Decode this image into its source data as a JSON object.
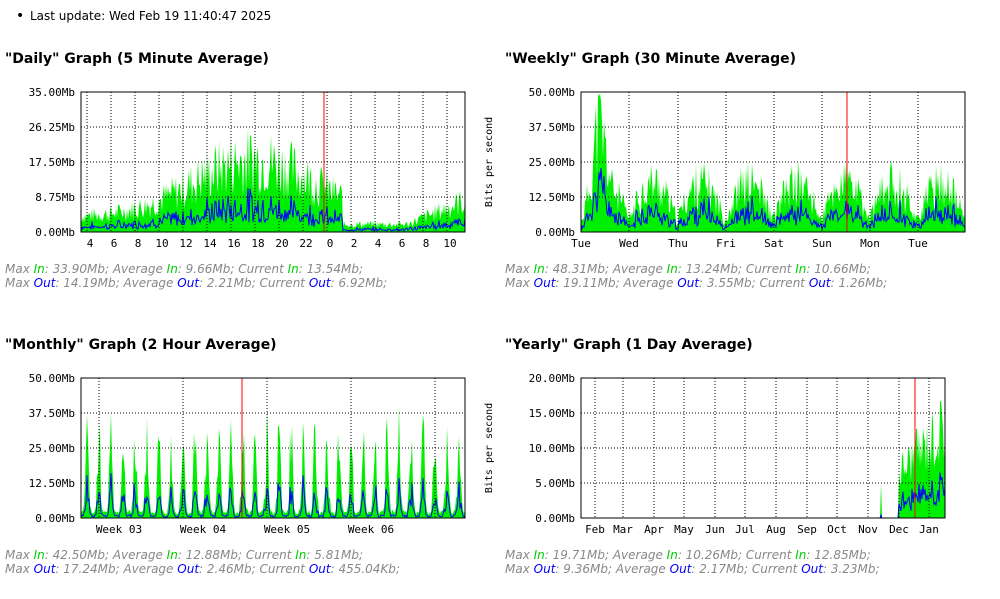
{
  "last_update": "Last update: Wed Feb 19 11:40:47 2025",
  "graphs": [
    {
      "id": "daily",
      "title": "\"Daily\" Graph (5 Minute Average)",
      "ylabel": "",
      "yticks": [
        "35.00Mb",
        "26.25Mb",
        "17.50Mb",
        "8.75Mb",
        "0.00Mb"
      ],
      "xticks": [
        "4",
        "6",
        "8",
        "10",
        "12",
        "14",
        "16",
        "18",
        "20",
        "22",
        "0",
        "2",
        "4",
        "6",
        "8",
        "10"
      ],
      "legend_in": {
        "max": "33.90Mb",
        "avg": "9.66Mb",
        "cur": "13.54Mb"
      },
      "legend_out": {
        "max": "14.19Mb",
        "avg": "2.21Mb",
        "cur": "6.92Mb"
      }
    },
    {
      "id": "weekly",
      "title": "\"Weekly\" Graph (30 Minute Average)",
      "ylabel": "Bits per second",
      "yticks": [
        "50.00Mb",
        "37.50Mb",
        "25.00Mb",
        "12.50Mb",
        "0.00Mb"
      ],
      "xticks": [
        "Tue",
        "Wed",
        "Thu",
        "Fri",
        "Sat",
        "Sun",
        "Mon",
        "Tue"
      ],
      "legend_in": {
        "max": "48.31Mb",
        "avg": "13.24Mb",
        "cur": "10.66Mb"
      },
      "legend_out": {
        "max": "19.11Mb",
        "avg": "3.55Mb",
        "cur": "1.26Mb"
      }
    },
    {
      "id": "monthly",
      "title": "\"Monthly\" Graph (2 Hour Average)",
      "ylabel": "",
      "yticks": [
        "50.00Mb",
        "37.50Mb",
        "25.00Mb",
        "12.50Mb",
        "0.00Mb"
      ],
      "xticks": [
        "Week 03",
        "Week 04",
        "Week 05",
        "Week 06"
      ],
      "legend_in": {
        "max": "42.50Mb",
        "avg": "12.88Mb",
        "cur": "5.81Mb"
      },
      "legend_out": {
        "max": "17.24Mb",
        "avg": "2.46Mb",
        "cur": "455.04Kb"
      }
    },
    {
      "id": "yearly",
      "title": "\"Yearly\" Graph (1 Day Average)",
      "ylabel": "Bits per second",
      "yticks": [
        "20.00Mb",
        "15.00Mb",
        "10.00Mb",
        "5.00Mb",
        "0.00Mb"
      ],
      "xticks": [
        "Feb",
        "Mar",
        "Apr",
        "May",
        "Jun",
        "Jul",
        "Aug",
        "Sep",
        "Oct",
        "Nov",
        "Dec",
        "Jan"
      ],
      "legend_in": {
        "max": "19.71Mb",
        "avg": "10.26Mb",
        "cur": "12.85Mb"
      },
      "legend_out": {
        "max": "9.36Mb",
        "avg": "2.17Mb",
        "cur": "3.23Mb"
      }
    }
  ],
  "labels": {
    "max": "Max",
    "average": "Average",
    "current": "Current",
    "in": "In",
    "out": "Out"
  },
  "colors": {
    "in": "#00ee00",
    "out": "#0000ff",
    "now": "#ff0000",
    "grid": "#000000"
  }
}
